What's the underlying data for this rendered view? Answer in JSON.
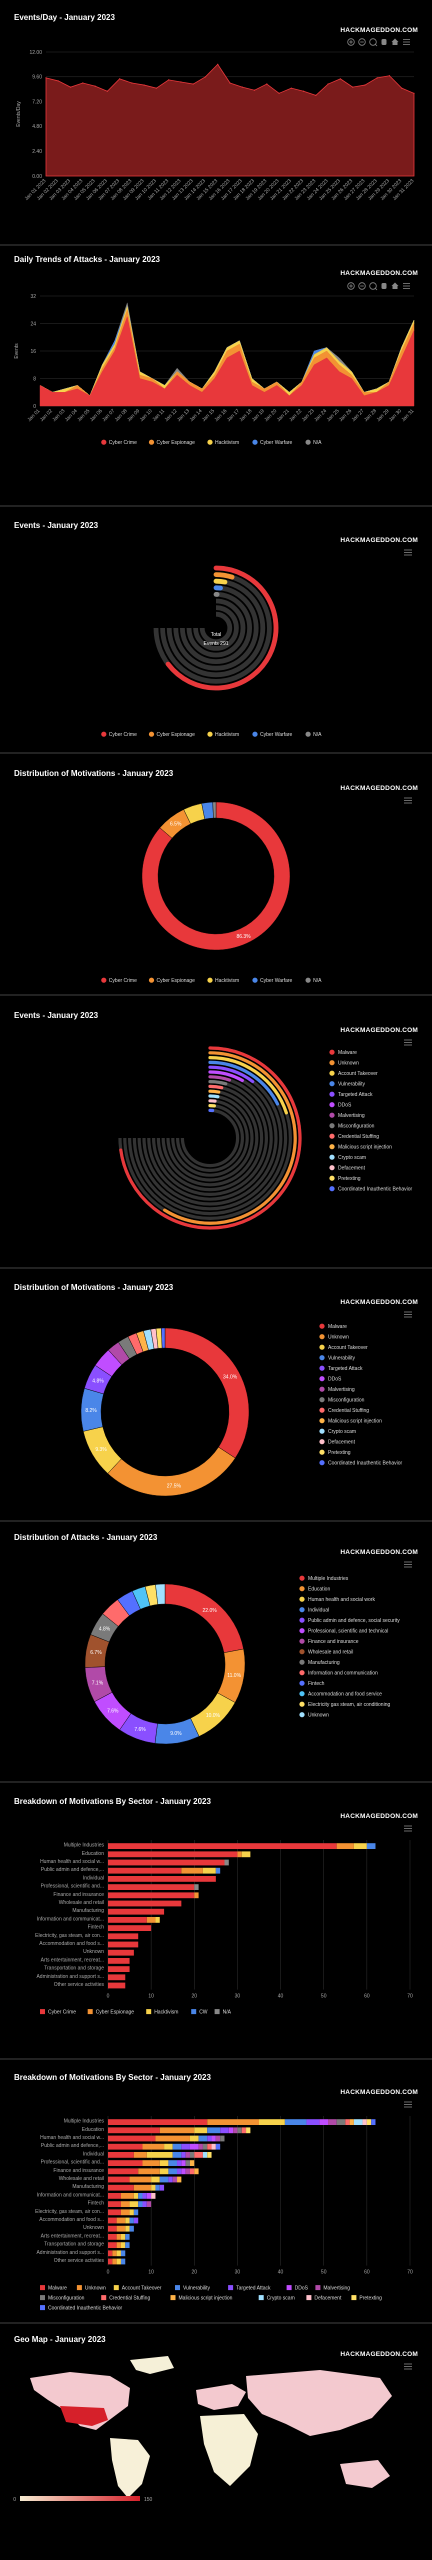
{
  "brand": "HACKMAGEDDON.COM",
  "colors": {
    "cybercrime": "#e8383b",
    "espionage": "#f39233",
    "hacktivism": "#f7d24b",
    "warfare": "#4a86e8",
    "na": "#888888",
    "track": "#333333"
  },
  "icons": [
    "zoom-in-icon",
    "zoom-out-icon",
    "magnifier-icon",
    "pan-hand-icon",
    "home-icon",
    "menu-icon"
  ],
  "chart_data": [
    {
      "type": "area",
      "title": "Events/Day - January 2023",
      "ylabel": "Events/Day",
      "ylim": [
        0,
        12
      ],
      "yticks": [
        "0.00",
        "2.40",
        "4.80",
        "7.20",
        "9.60",
        "12.00"
      ],
      "x": [
        "Jan 01 2023",
        "Jan 02 2023",
        "Jan 03 2023",
        "Jan 04 2023",
        "Jan 05 2023",
        "Jan 06 2023",
        "Jan 07 2023",
        "Jan 08 2023",
        "Jan 09 2023",
        "Jan 10 2023",
        "Jan 11 2023",
        "Jan 12 2023",
        "Jan 13 2023",
        "Jan 14 2023",
        "Jan 15 2023",
        "Jan 16 2023",
        "Jan 17 2023",
        "Jan 18 2023",
        "Jan 19 2023",
        "Jan 20 2023",
        "Jan 21 2023",
        "Jan 22 2023",
        "Jan 23 2023",
        "Jan 24 2023",
        "Jan 25 2023",
        "Jan 26 2023",
        "Jan 27 2023",
        "Jan 28 2023",
        "Jan 29 2023",
        "Jan 30 2023",
        "Jan 31 2023"
      ],
      "values": [
        9.5,
        9.2,
        8.6,
        9.0,
        8.7,
        8.2,
        9.4,
        9.0,
        8.8,
        8.5,
        9.3,
        9.1,
        8.9,
        9.6,
        10.8,
        9.0,
        8.6,
        8.3,
        8.9,
        8.0,
        8.5,
        8.2,
        7.8,
        8.9,
        9.4,
        8.6,
        8.8,
        9.5,
        9.7,
        8.5,
        8.0
      ]
    },
    {
      "type": "area",
      "title": "Daily Trends of Attacks - January 2023",
      "ylabel": "Events",
      "ylim": [
        0,
        32
      ],
      "yticks": [
        "0",
        "8",
        "16",
        "24",
        "32"
      ],
      "x": [
        "Jan 01",
        "Jan 02",
        "Jan 03",
        "Jan 04",
        "Jan 05",
        "Jan 06",
        "Jan 07",
        "Jan 08",
        "Jan 09",
        "Jan 10",
        "Jan 11",
        "Jan 12",
        "Jan 13",
        "Jan 14",
        "Jan 15",
        "Jan 16",
        "Jan 17",
        "Jan 18",
        "Jan 19",
        "Jan 20",
        "Jan 21",
        "Jan 22",
        "Jan 23",
        "Jan 24",
        "Jan 25",
        "Jan 26",
        "Jan 27",
        "Jan 28",
        "Jan 29",
        "Jan 30",
        "Jan 31"
      ],
      "series": [
        {
          "name": "Cyber Crime",
          "values": [
            6,
            4,
            4,
            5,
            3,
            10,
            16,
            26,
            8,
            7,
            5,
            9,
            6,
            4,
            8,
            14,
            16,
            6,
            4,
            6,
            3,
            6,
            12,
            14,
            10,
            8,
            3,
            4,
            6,
            14,
            22
          ]
        },
        {
          "name": "Cyber Espionage",
          "values": [
            0,
            0,
            0,
            1,
            0,
            1,
            1,
            2,
            1,
            1,
            0,
            1,
            1,
            1,
            1,
            2,
            2,
            1,
            1,
            1,
            0,
            1,
            2,
            2,
            2,
            1,
            1,
            0,
            1,
            2,
            2
          ]
        },
        {
          "name": "Hacktivism",
          "values": [
            0,
            0,
            1,
            0,
            0,
            1,
            1,
            1,
            1,
            0,
            1,
            0,
            0,
            0,
            1,
            1,
            1,
            1,
            0,
            0,
            1,
            0,
            1,
            1,
            1,
            1,
            0,
            1,
            0,
            1,
            1
          ]
        },
        {
          "name": "Cyber Warfare",
          "values": [
            0,
            0,
            0,
            0,
            0,
            0,
            1,
            0,
            0,
            0,
            0,
            0,
            0,
            0,
            0,
            0,
            0,
            0,
            0,
            0,
            0,
            0,
            1,
            0,
            0,
            0,
            0,
            0,
            0,
            0,
            0
          ]
        },
        {
          "name": "N/A",
          "values": [
            0,
            0,
            0,
            0,
            0,
            0,
            0,
            1,
            0,
            0,
            0,
            1,
            0,
            0,
            0,
            0,
            0,
            0,
            0,
            0,
            0,
            0,
            0,
            0,
            1,
            0,
            0,
            0,
            0,
            0,
            0
          ]
        }
      ]
    },
    {
      "type": "radial-bar",
      "title": "Events - January 2023",
      "center_label": "Total",
      "center_sub": "Events 291",
      "categories": [
        "Cyber Crime",
        "Cyber Espionage",
        "Hacktivism",
        "Cyber Warfare",
        "N/A"
      ],
      "values": [
        86.3,
        6.5,
        4.1,
        2.4,
        0.7
      ]
    },
    {
      "type": "pie",
      "title": "Distribution of Motivations - January 2023",
      "categories": [
        "Cyber Crime",
        "Cyber Espionage",
        "Hacktivism",
        "Cyber Warfare",
        "N/A"
      ],
      "values": [
        86.3,
        6.5,
        4.1,
        2.4,
        0.7
      ],
      "labels": [
        "86.3%",
        "6.5%",
        "",
        "",
        ""
      ]
    },
    {
      "type": "radial-bar",
      "title": "Events - January 2023",
      "categories": [
        "Malware",
        "Unknown",
        "Account Takeover",
        "Vulnerability",
        "Targeted Attack",
        "DDoS",
        "Malvertising",
        "Misconfiguration",
        "Credential Stuffing",
        "Malicious script injection",
        "Crypto scam",
        "Defacement",
        "Pretexting",
        "Coordinated Inauthentic Behavior"
      ],
      "values": [
        34.0,
        27.5,
        9.3,
        8.2,
        4.8,
        3.8,
        2.4,
        2.1,
        1.7,
        1.4,
        1.4,
        1.0,
        1.0,
        0.7
      ]
    },
    {
      "type": "pie",
      "title": "Distribution of Motivations - January 2023",
      "categories": [
        "Malware",
        "Unknown",
        "Account Takeover",
        "Vulnerability",
        "Targeted Attack",
        "DDoS",
        "Malvertising",
        "Misconfiguration",
        "Credential Stuffing",
        "Malicious script injection",
        "Crypto scam",
        "Defacement",
        "Pretexting",
        "Coordinated Inauthentic Behavior"
      ],
      "values": [
        34.0,
        27.5,
        9.3,
        8.2,
        4.8,
        3.8,
        2.4,
        2.1,
        1.7,
        1.4,
        1.4,
        1.0,
        1.0,
        0.7
      ],
      "labels": [
        "34.0%",
        "27.5%",
        "9.3%",
        "8.2%",
        "4.8%",
        "",
        "",
        "",
        "",
        "",
        "",
        "",
        "",
        ""
      ]
    },
    {
      "type": "pie",
      "title": "Distribution of Attacks - January 2023",
      "categories": [
        "Multiple Industries",
        "Education",
        "Human health and social work",
        "Individual",
        "Public admin and defence, social security",
        "Professional, scientific and technical",
        "Finance and insurance",
        "Wholesale and retail",
        "Manufacturing",
        "Information and communication",
        "Fintech",
        "Accommodation and food service",
        "Electricity gas steam, air conditioning",
        "Unknown"
      ],
      "values": [
        22.0,
        11.0,
        10.0,
        9.0,
        7.6,
        7.6,
        7.1,
        6.7,
        4.8,
        4.1,
        3.4,
        2.7,
        2.1,
        1.9
      ],
      "labels": [
        "22.0%",
        "11.0%",
        "10.0%",
        "9.0%",
        "7.6%",
        "7.6%",
        "7.1%",
        "6.7%",
        "4.8%",
        "",
        "",
        "",
        "",
        ""
      ]
    },
    {
      "type": "bar",
      "title": "Breakdown of Motivations By Sector - January 2023",
      "categories": [
        "Multiple Industries",
        "Education",
        "Human health and social w...",
        "Public admin and defence,...",
        "Individual",
        "Professional, scientific and...",
        "Finance and insurance",
        "Wholesale and retail",
        "Manufacturing",
        "Information and communicat...",
        "Fintech",
        "Electricity, gas steam, air con...",
        "Accommodation and food s...",
        "Unknown",
        "Arts entertainment, recreat...",
        "Transportation and storage",
        "Administration and support s...",
        "Other service activities"
      ],
      "series": [
        {
          "name": "Cyber Crime",
          "values": [
            53,
            30,
            27,
            17,
            25,
            20,
            20,
            17,
            13,
            9,
            10,
            7,
            7,
            6,
            5,
            5,
            4,
            4
          ]
        },
        {
          "name": "Cyber Espionage",
          "values": [
            4,
            1,
            0,
            5,
            0,
            0,
            1,
            0,
            0,
            2,
            0,
            0,
            0,
            0,
            0,
            0,
            0,
            0
          ]
        },
        {
          "name": "Hacktivism",
          "values": [
            3,
            2,
            0,
            3,
            0,
            0,
            0,
            0,
            0,
            1,
            0,
            0,
            0,
            0,
            0,
            0,
            0,
            0
          ]
        },
        {
          "name": "CW",
          "values": [
            2,
            0,
            0,
            1,
            0,
            0,
            0,
            0,
            0,
            0,
            0,
            0,
            0,
            0,
            0,
            0,
            0,
            0
          ]
        },
        {
          "name": "N/A",
          "values": [
            0,
            0,
            1,
            0,
            0,
            1,
            0,
            0,
            0,
            0,
            0,
            0,
            0,
            0,
            0,
            0,
            0,
            0
          ]
        }
      ],
      "xticks": [
        "0",
        "10",
        "20",
        "30",
        "40",
        "50",
        "60",
        "70"
      ],
      "xlim": [
        0,
        70
      ]
    },
    {
      "type": "bar",
      "title": "Breakdown of Motivations By Sector - January 2023",
      "categories": [
        "Multiple Industries",
        "Education",
        "Human health and social w...",
        "Public admin and defence,...",
        "Individual",
        "Professional, scientific and...",
        "Finance and insurance",
        "Wholesale and retail",
        "Manufacturing",
        "Information and communicat...",
        "Fintech",
        "Electricity, gas steam, air con...",
        "Accommodation and food s...",
        "Unknown",
        "Arts entertainment, recreat...",
        "Transportation and storage",
        "Administration and support s...",
        "Other service activities"
      ],
      "series": [
        {
          "name": "Malware",
          "values": [
            23,
            12,
            11,
            8,
            6,
            8,
            7,
            5,
            6,
            3,
            3,
            3,
            2,
            2,
            2,
            2,
            1,
            1
          ]
        },
        {
          "name": "Unknown",
          "values": [
            12,
            8,
            8,
            5,
            3,
            4,
            5,
            5,
            4,
            3,
            2,
            2,
            2,
            2,
            1,
            1,
            1,
            1
          ]
        },
        {
          "name": "Account Takeover",
          "values": [
            6,
            3,
            2,
            2,
            6,
            2,
            2,
            2,
            1,
            1,
            2,
            1,
            1,
            1,
            1,
            1,
            1,
            1
          ]
        },
        {
          "name": "Vulnerability",
          "values": [
            5,
            3,
            2,
            2,
            2,
            2,
            2,
            2,
            1,
            1,
            1,
            1,
            1,
            1,
            1,
            1,
            1,
            1
          ]
        },
        {
          "name": "Targeted Attack",
          "values": [
            3,
            2,
            1,
            2,
            1,
            1,
            1,
            1,
            1,
            1,
            1,
            0,
            1,
            0,
            0,
            0,
            0,
            0
          ]
        },
        {
          "name": "DDoS",
          "values": [
            2,
            1,
            1,
            2,
            0,
            1,
            1,
            0,
            0,
            1,
            0,
            0,
            0,
            0,
            0,
            0,
            0,
            0
          ]
        },
        {
          "name": "Malvertising",
          "values": [
            2,
            1,
            1,
            1,
            1,
            0,
            1,
            1,
            0,
            0,
            1,
            0,
            0,
            0,
            0,
            0,
            0,
            0
          ]
        },
        {
          "name": "Misconfiguration",
          "values": [
            2,
            1,
            1,
            1,
            1,
            1,
            0,
            0,
            0,
            0,
            0,
            0,
            0,
            0,
            0,
            0,
            0,
            0
          ]
        },
        {
          "name": "Credential Stuffing",
          "values": [
            1,
            1,
            0,
            1,
            2,
            0,
            1,
            0,
            0,
            0,
            0,
            0,
            0,
            0,
            0,
            0,
            0,
            0
          ]
        },
        {
          "name": "Malicious script injection",
          "values": [
            1,
            0,
            0,
            0,
            0,
            1,
            1,
            1,
            0,
            0,
            0,
            0,
            0,
            0,
            0,
            0,
            0,
            0
          ]
        },
        {
          "name": "Crypto scam",
          "values": [
            2,
            0,
            0,
            0,
            1,
            0,
            0,
            0,
            0,
            0,
            0,
            0,
            0,
            0,
            0,
            0,
            0,
            0
          ]
        },
        {
          "name": "Defacement",
          "values": [
            1,
            0,
            0,
            1,
            0,
            0,
            0,
            0,
            0,
            1,
            0,
            0,
            0,
            0,
            0,
            0,
            0,
            0
          ]
        },
        {
          "name": "Pretexting",
          "values": [
            1,
            1,
            0,
            0,
            1,
            0,
            0,
            0,
            0,
            0,
            0,
            0,
            0,
            0,
            0,
            0,
            0,
            0
          ]
        },
        {
          "name": "Coordinated Inauthentic Behavior",
          "values": [
            1,
            0,
            0,
            1,
            0,
            0,
            0,
            0,
            0,
            0,
            0,
            0,
            0,
            0,
            0,
            0,
            0,
            0
          ]
        }
      ],
      "xticks": [
        "0",
        "10",
        "20",
        "30",
        "40",
        "50",
        "60",
        "70"
      ],
      "xlim": [
        0,
        70
      ]
    },
    {
      "type": "map",
      "title": "Geo Map - January 2023",
      "legend_min": "0",
      "legend_max": "150"
    }
  ]
}
